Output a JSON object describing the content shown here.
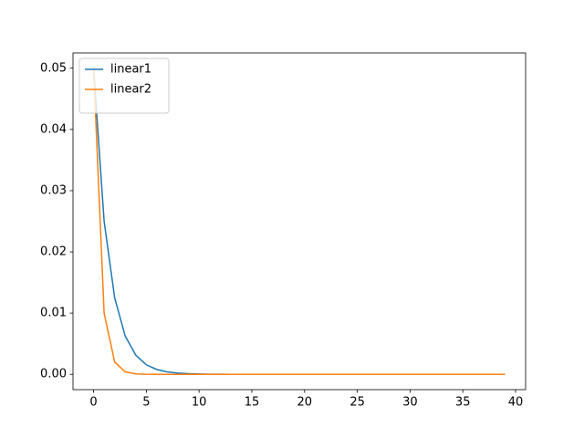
{
  "chart_data": {
    "type": "line",
    "x": [
      0,
      1,
      2,
      3,
      4,
      5,
      6,
      7,
      8,
      9,
      10,
      11,
      12,
      13,
      14,
      15,
      16,
      17,
      18,
      19,
      20,
      21,
      22,
      23,
      24,
      25,
      26,
      27,
      28,
      29,
      30,
      31,
      32,
      33,
      34,
      35,
      36,
      37,
      38,
      39
    ],
    "series": [
      {
        "name": "linear1",
        "color": "#1f77b4",
        "values": [
          0.05,
          0.025,
          0.0125,
          0.00625,
          0.00313,
          0.00156,
          0.00078,
          0.00039,
          0.0002,
          0.0001,
          5e-05,
          2e-05,
          1e-05,
          0,
          0,
          0,
          0,
          0,
          0,
          0,
          0,
          0,
          0,
          0,
          0,
          0,
          0,
          0,
          0,
          0,
          0,
          0,
          0,
          0,
          0,
          0,
          0,
          0,
          0,
          0
        ]
      },
      {
        "name": "linear2",
        "color": "#ff7f0e",
        "values": [
          0.05,
          0.01,
          0.002,
          0.0004,
          8e-05,
          2e-05,
          0,
          0,
          0,
          0,
          0,
          0,
          0,
          0,
          0,
          0,
          0,
          0,
          0,
          0,
          0,
          0,
          0,
          0,
          0,
          0,
          0,
          0,
          0,
          0,
          0,
          0,
          0,
          0,
          0,
          0,
          0,
          0,
          0,
          0
        ]
      }
    ],
    "xlim": [
      -1.95,
      40.95
    ],
    "xticks": [
      0,
      5,
      10,
      15,
      20,
      25,
      30,
      35,
      40
    ],
    "ylim": [
      -0.0025,
      0.0525
    ],
    "yticks": [
      {
        "value": 0,
        "label": "0.00"
      },
      {
        "value": 0.01,
        "label": "0.01"
      },
      {
        "value": 0.02,
        "label": "0.02"
      },
      {
        "value": 0.03,
        "label": "0.03"
      },
      {
        "value": 0.04,
        "label": "0.04"
      },
      {
        "value": 0.05,
        "label": "0.05"
      }
    ],
    "legend": "upper left",
    "grid": false
  }
}
